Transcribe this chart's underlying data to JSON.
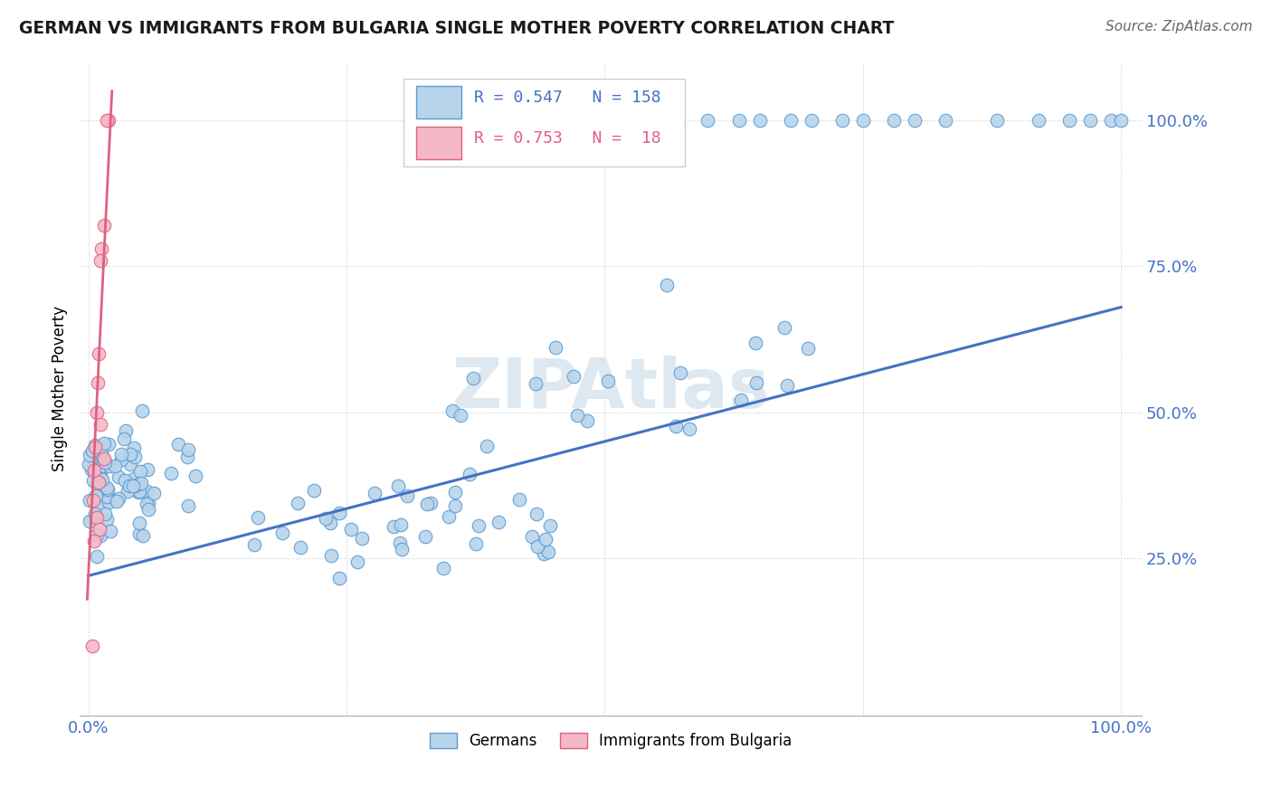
{
  "title": "GERMAN VS IMMIGRANTS FROM BULGARIA SINGLE MOTHER POVERTY CORRELATION CHART",
  "source": "Source: ZipAtlas.com",
  "ylabel": "Single Mother Poverty",
  "r_german": 0.547,
  "n_german": 158,
  "r_bulgaria": 0.753,
  "n_bulgaria": 18,
  "german_color": "#b8d4ea",
  "german_edge_color": "#5b9bd5",
  "bulgaria_color": "#f4b8c8",
  "bulgaria_edge_color": "#e06080",
  "german_line_color": "#4472c4",
  "pink_line_color": "#e06080",
  "background_color": "#ffffff",
  "grid_color": "#cccccc",
  "tick_color": "#4472c4",
  "right_label_color": "#4472c4",
  "title_color": "#1a1a1a",
  "source_color": "#666666",
  "watermark_color": "#dde8f0",
  "legend_edge_color": "#cccccc"
}
